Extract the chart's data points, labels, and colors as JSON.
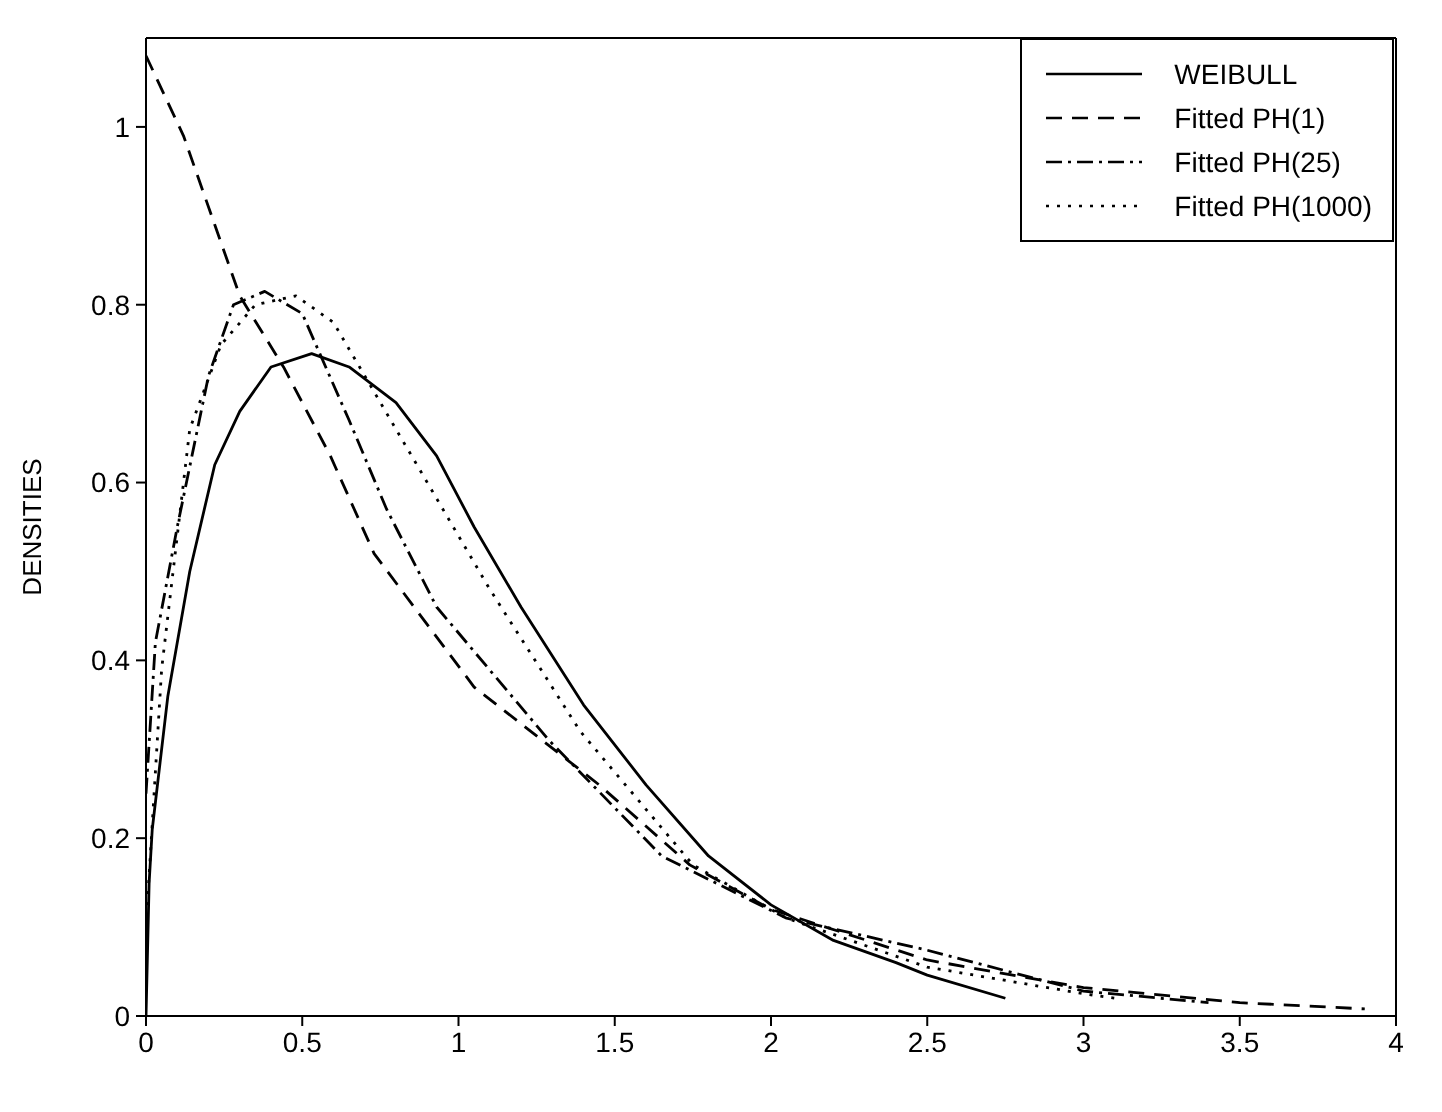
{
  "chart_data": {
    "type": "line",
    "ylabel": "DENSITIES",
    "xlim": [
      0,
      4
    ],
    "ylim": [
      0,
      1.1
    ],
    "xticks": [
      0,
      0.5,
      1,
      1.5,
      2,
      2.5,
      3,
      3.5,
      4
    ],
    "yticks": [
      0,
      0.2,
      0.4,
      0.6,
      0.8,
      1
    ],
    "grid": false,
    "legend": "top right",
    "marker": "none",
    "series": [
      {
        "name": "WEIBULL",
        "color": "#000000",
        "line_style": "solid",
        "x": [
          0,
          0.01,
          0.02,
          0.07,
          0.14,
          0.22,
          0.3,
          0.4,
          0.53,
          0.65,
          0.8,
          0.93,
          1.05,
          1.2,
          1.4,
          1.6,
          1.8,
          2.0,
          2.2,
          2.4,
          2.5,
          2.75
        ],
        "values": [
          0,
          0.15,
          0.21,
          0.36,
          0.5,
          0.62,
          0.68,
          0.73,
          0.745,
          0.73,
          0.69,
          0.63,
          0.55,
          0.46,
          0.35,
          0.26,
          0.18,
          0.125,
          0.085,
          0.06,
          0.046,
          0.02
        ]
      },
      {
        "name": "Fitted PH(1)",
        "color": "#000000",
        "line_style": "dashed",
        "x": [
          0,
          0.12,
          0.22,
          0.3,
          0.44,
          0.59,
          0.73,
          1.05,
          1.45,
          1.74,
          2.0,
          2.5,
          3.0,
          3.5,
          3.9
        ],
        "values": [
          1.08,
          0.99,
          0.89,
          0.81,
          0.73,
          0.63,
          0.52,
          0.37,
          0.26,
          0.17,
          0.12,
          0.063,
          0.032,
          0.015,
          0.008
        ]
      },
      {
        "name": "Fitted PH(25)",
        "color": "#000000",
        "line_style": "dashdot",
        "x": [
          0,
          0.03,
          0.1,
          0.2,
          0.28,
          0.38,
          0.5,
          0.65,
          0.77,
          0.93,
          1.29,
          1.65,
          2.05,
          2.5,
          3.0,
          3.4
        ],
        "values": [
          0.25,
          0.42,
          0.55,
          0.72,
          0.8,
          0.815,
          0.79,
          0.67,
          0.57,
          0.46,
          0.31,
          0.18,
          0.11,
          0.074,
          0.028,
          0.015
        ]
      },
      {
        "name": "Fitted PH(1000)",
        "color": "#000000",
        "line_style": "dotted",
        "x": [
          0,
          0.05,
          0.14,
          0.24,
          0.35,
          0.48,
          0.6,
          0.85,
          1.1,
          1.39,
          1.75,
          2.05,
          2.5,
          3.0,
          3.1
        ],
        "values": [
          0.1,
          0.39,
          0.66,
          0.755,
          0.8,
          0.81,
          0.78,
          0.63,
          0.48,
          0.32,
          0.17,
          0.11,
          0.055,
          0.025,
          0.02
        ]
      }
    ]
  }
}
